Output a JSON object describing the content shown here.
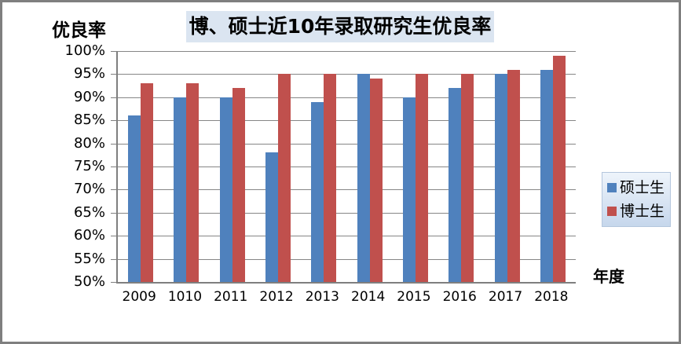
{
  "window": {
    "background": "#ffffff",
    "border_color": "#7f7f7f"
  },
  "chart_data": {
    "type": "bar",
    "title": "博、硕士近10年录取研究生优良率",
    "y_axis_title": "优良率",
    "x_axis_title": "年度",
    "categories": [
      "2009",
      "1010",
      "2011",
      "2012",
      "2013",
      "2014",
      "2015",
      "2016",
      "2017",
      "2018"
    ],
    "series": [
      {
        "key": "masters",
        "name": "硕士生",
        "color": "#4F81BD",
        "values": [
          86,
          90,
          90,
          78,
          89,
          95,
          90,
          92,
          95,
          96
        ]
      },
      {
        "key": "doctors",
        "name": "博士生",
        "color": "#C0504D",
        "values": [
          93,
          93,
          92,
          95,
          95,
          94,
          95,
          95,
          96,
          99
        ]
      }
    ],
    "ylim": [
      50,
      100
    ],
    "y_tick_step": 5,
    "y_tick_labels": [
      "100%",
      "95%",
      "90%",
      "85%",
      "80%",
      "75%",
      "70%",
      "65%",
      "60%",
      "55%",
      "50%"
    ],
    "grid": true,
    "legend_position": "right",
    "colors": {
      "window_border": "#7f7f7f",
      "gridline": "#868686",
      "axis": "#7f7f7f",
      "title_background": "#dbe5f1",
      "legend_background_top": "#eef4fb",
      "legend_background_bottom": "#c6d7ec",
      "legend_border": "#b4c6dd",
      "text": "#000000"
    }
  }
}
